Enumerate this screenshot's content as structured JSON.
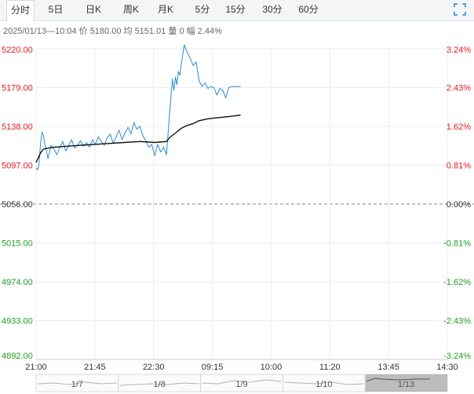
{
  "tabs": [
    "分时",
    "5日",
    "日K",
    "周K",
    "月K",
    "5分",
    "15分",
    "30分",
    "60分"
  ],
  "active_tab": "分时",
  "info_line": "2025/01/13—10:04 价 5180.00 均 5151.01 量 0 幅 2.44%",
  "colors": {
    "price": "#2a8bd6",
    "avg": "#111111",
    "up": "#e0191f",
    "down": "#1f9e1f",
    "base": "#333333",
    "grid": "#ececec"
  },
  "icons": {
    "expand": "expand-icon"
  },
  "chart_data": {
    "type": "line",
    "title": "",
    "ylim": [
      4892,
      5220
    ],
    "base_price": 5056,
    "y_ticks": [
      "5220.00",
      "5179.00",
      "5138.00",
      "5097.00",
      "5056.00",
      "5015.00",
      "4974.00",
      "4933.00",
      "4892.00"
    ],
    "pct_ticks": [
      "3.24%",
      "2.43%",
      "1.62%",
      "0.81%",
      "0.00%",
      "-0.81%",
      "-1.62%",
      "-2.43%",
      "-3.24%"
    ],
    "x_ticks": [
      "21:00",
      "21:45",
      "22:30",
      "09:15",
      "10:00",
      "11:20",
      "13:45",
      "14:30"
    ],
    "nav_labels": [
      "1/7",
      "1/8",
      "1/9",
      "1/10",
      "1/13"
    ],
    "x_session_minutes": 555,
    "series": [
      {
        "t": [
          0,
          2,
          4,
          6,
          8,
          10,
          12,
          14,
          16,
          18,
          20,
          24,
          28,
          32,
          36,
          40,
          44,
          48,
          52,
          56,
          60,
          64,
          68,
          72,
          76,
          80,
          84,
          88,
          92,
          96,
          100,
          104,
          108,
          112,
          116,
          120,
          124,
          128,
          132,
          136,
          140,
          144,
          148,
          152,
          156,
          160,
          164,
          168,
          172,
          176,
          180,
          184,
          186,
          188,
          190,
          192,
          194,
          196,
          198,
          200,
          204,
          208,
          212,
          216,
          220,
          224,
          228,
          232,
          236,
          240,
          244,
          248,
          252,
          256,
          260,
          264,
          268,
          272,
          276
        ],
        "values": [
          5094,
          5092,
          5099,
          5120,
          5132,
          5128,
          5118,
          5112,
          5104,
          5110,
          5118,
          5114,
          5108,
          5116,
          5122,
          5112,
          5118,
          5124,
          5115,
          5118,
          5123,
          5117,
          5121,
          5116,
          5124,
          5119,
          5127,
          5122,
          5118,
          5126,
          5130,
          5120,
          5127,
          5134,
          5124,
          5131,
          5137,
          5130,
          5142,
          5135,
          5138,
          5128,
          5123,
          5116,
          5119,
          5107,
          5119,
          5111,
          5116,
          5108,
          5150,
          5188,
          5176,
          5190,
          5182,
          5196,
          5192,
          5204,
          5214,
          5224,
          5216,
          5210,
          5202,
          5206,
          5186,
          5180,
          5184,
          5178,
          5180,
          5179,
          5171,
          5178,
          5176,
          5168,
          5179,
          5180,
          5180,
          5180,
          5180
        ]
      },
      {
        "t": [
          0,
          6,
          10,
          16,
          24,
          40,
          60,
          80,
          100,
          120,
          140,
          160,
          176,
          180,
          188,
          196,
          204,
          212,
          220,
          232,
          244,
          256,
          268,
          276
        ],
        "values": [
          5100,
          5110,
          5114,
          5115,
          5116,
          5117,
          5118,
          5119,
          5120,
          5121,
          5122,
          5121,
          5122,
          5126,
          5131,
          5136,
          5139,
          5141,
          5144,
          5146,
          5147,
          5148,
          5149,
          5150
        ]
      }
    ]
  }
}
